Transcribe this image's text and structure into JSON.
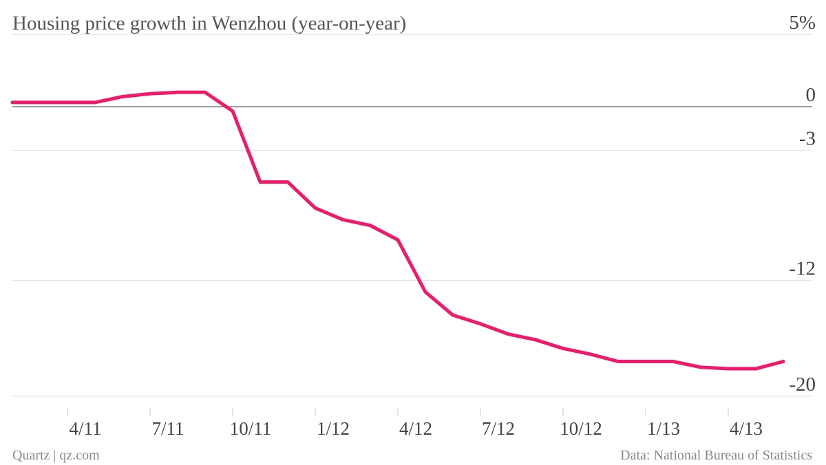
{
  "chart_data": {
    "type": "line",
    "title": "Housing price growth in Wenzhou (year-on-year)",
    "source": "Data: National Bureau of Statistics",
    "credit": "Quartz | qz.com",
    "categories": [
      null,
      null,
      "4/11",
      null,
      null,
      "7/11",
      null,
      null,
      "10/11",
      null,
      null,
      "1/12",
      null,
      null,
      "4/12",
      null,
      null,
      "7/12",
      null,
      null,
      "10/12",
      null,
      null,
      "1/13",
      null,
      null,
      "4/13",
      null,
      null
    ],
    "series": [
      {
        "name": "Wenzhou",
        "color": "#f0196a",
        "values": [
          0.3,
          0.3,
          0.3,
          0.3,
          0.7,
          0.9,
          1.0,
          1.0,
          -0.3,
          -5.2,
          -5.2,
          -7.0,
          -7.8,
          -8.2,
          -9.2,
          -12.8,
          -14.4,
          -15.0,
          -15.7,
          -16.1,
          -16.7,
          -17.1,
          -17.6,
          -17.6,
          -17.6,
          -18.0,
          -18.1,
          -18.1,
          -17.6
        ]
      }
    ],
    "ylim": [
      -20,
      5
    ],
    "yticks": [
      {
        "value": 5,
        "label": "5%"
      },
      0,
      -3,
      -12,
      -20
    ],
    "grid": true
  }
}
